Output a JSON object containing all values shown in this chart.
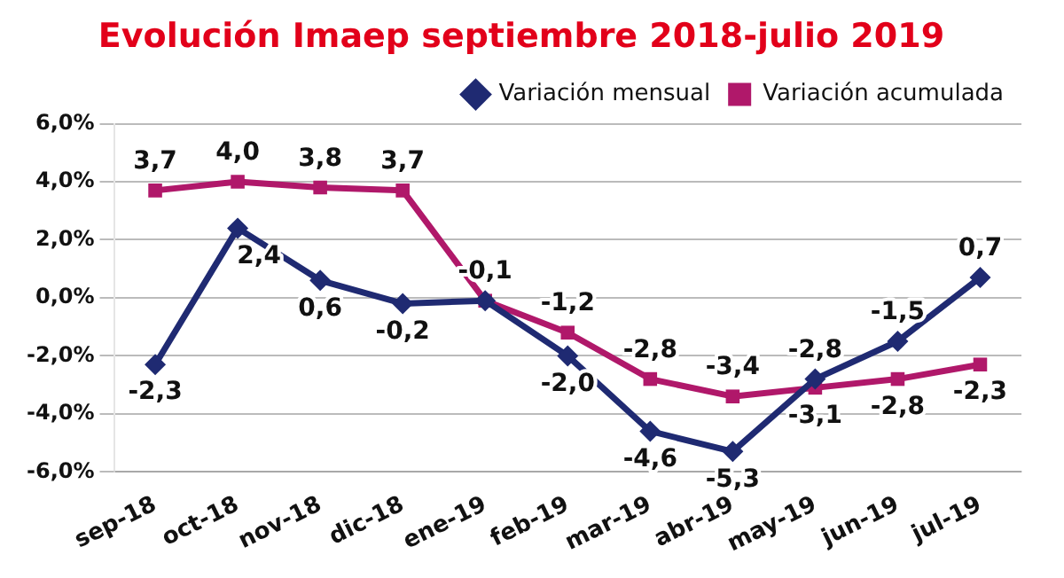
{
  "chart_data": {
    "type": "line",
    "title": "Evolución Imaep septiembre 2018-julio 2019",
    "categories": [
      "sep-18",
      "oct-18",
      "nov-18",
      "dic-18",
      "ene-19",
      "feb-19",
      "mar-19",
      "abr-19",
      "may-19",
      "jun-19",
      "jul-19"
    ],
    "series": [
      {
        "name": "Variación mensual",
        "color": "#1f2a72",
        "marker": "diamond",
        "values": [
          -2.3,
          2.4,
          0.6,
          -0.2,
          -0.1,
          -2.0,
          -4.6,
          -5.3,
          -2.8,
          -1.5,
          0.7
        ],
        "value_labels": [
          "-2,3",
          "2,4",
          "0,6",
          "-0,2",
          null,
          "-2,0",
          "-4,6",
          "-5,3",
          "-2,8",
          "-1,5",
          "0,7"
        ]
      },
      {
        "name": "Variación acumulada",
        "color": "#b0186a",
        "marker": "square",
        "values": [
          3.7,
          4.0,
          3.8,
          3.7,
          -0.1,
          -1.2,
          -2.8,
          -3.4,
          -3.1,
          -2.8,
          -2.3
        ],
        "value_labels": [
          "3,7",
          "4,0",
          "3,8",
          "3,7",
          "-0,1",
          "-1,2",
          "-2,8",
          "-3,4",
          "-3,1",
          "-2,8",
          "-2,3"
        ]
      }
    ],
    "ylim": [
      -6,
      6
    ],
    "yticks": [
      {
        "value": -6,
        "label": "-6,0%"
      },
      {
        "value": -4,
        "label": "-4,0%"
      },
      {
        "value": -2,
        "label": "-2,0%"
      },
      {
        "value": 0,
        "label": "0,0%"
      },
      {
        "value": 2,
        "label": "2,0%"
      },
      {
        "value": 4,
        "label": "4,0%"
      },
      {
        "value": 6,
        "label": "6,0%"
      }
    ],
    "grid": "y",
    "legend": "top right",
    "line_style": "solid"
  }
}
